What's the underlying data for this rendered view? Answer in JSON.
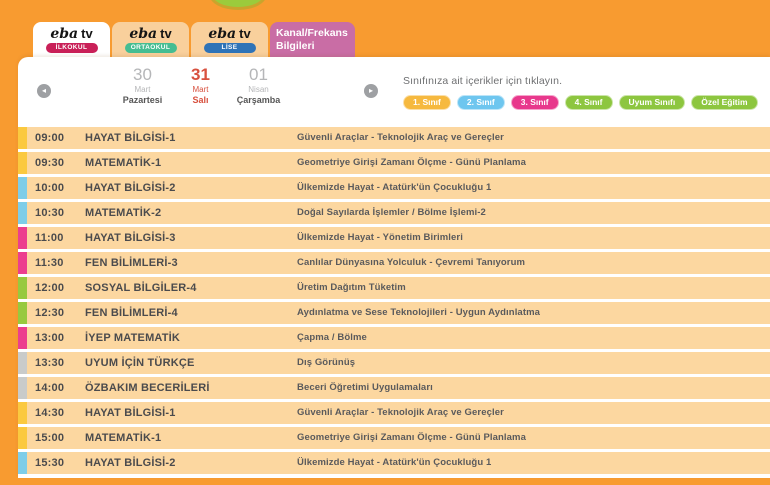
{
  "colors": {
    "page_bg": "#F89B30",
    "card_bg": "#FFFFFF",
    "row_bg": "#FCD7A0",
    "selected_date": "#D8513F"
  },
  "icons": {
    "prev_arrow": "◂",
    "next_arrow": "▸"
  },
  "tabs": [
    {
      "id": "ilkokul",
      "brand": "eba tv",
      "badge": "İLKOKUL",
      "badge_color": "#C92058",
      "active": true
    },
    {
      "id": "ortaokul",
      "brand": "eba tv",
      "badge": "ORTAOKUL",
      "badge_color": "#45BD92",
      "active": false
    },
    {
      "id": "lise",
      "brand": "eba tv",
      "badge": "LİSE",
      "badge_color": "#2F73B7",
      "active": false
    },
    {
      "id": "kanal-frekans",
      "label": "Kanal/Frekans Bilgileri",
      "color": "#C96DA5",
      "active": false
    }
  ],
  "date_nav": {
    "days": [
      {
        "day": "30",
        "month": "Mart",
        "weekday": "Pazartesi",
        "selected": false
      },
      {
        "day": "31",
        "month": "Mart",
        "weekday": "Salı",
        "selected": true
      },
      {
        "day": "01",
        "month": "Nisan",
        "weekday": "Çarşamba",
        "selected": false
      }
    ]
  },
  "filters": {
    "label": "Sınıfınıza ait içerikler için tıklayın.",
    "buttons": [
      {
        "label": "1. Sınıf",
        "color": "#F6B93F"
      },
      {
        "label": "2. Sınıf",
        "color": "#6EC6EF"
      },
      {
        "label": "3. Sınıf",
        "color": "#E8388C"
      },
      {
        "label": "4. Sınıf",
        "color": "#8DC63F"
      },
      {
        "label": "Uyum Sınıfı",
        "color": "#8DC63F"
      },
      {
        "label": "Özel Eğitim",
        "color": "#8DC63F"
      }
    ]
  },
  "schedule": {
    "rows": [
      {
        "time": "09:00",
        "lesson": "HAYAT BİLGİSİ-1",
        "topic": "Güvenli Araçlar - Teknolojik Araç ve Gereçler",
        "bar_color": "#FBC93F"
      },
      {
        "time": "09:30",
        "lesson": "MATEMATİK-1",
        "topic": "Geometriye Girişi Zamanı Ölçme - Günü Planlama",
        "bar_color": "#FBC93F"
      },
      {
        "time": "10:00",
        "lesson": "HAYAT BİLGİSİ-2",
        "topic": "Ülkemizde Hayat - Atatürk'ün Çocukluğu 1",
        "bar_color": "#7ECDE8"
      },
      {
        "time": "10:30",
        "lesson": "MATEMATİK-2",
        "topic": "Doğal Sayılarda İşlemler / Bölme İşlemi-2",
        "bar_color": "#7ECDE8"
      },
      {
        "time": "11:00",
        "lesson": "HAYAT BİLGİSİ-3",
        "topic": "Ülkemizde Hayat - Yönetim Birimleri",
        "bar_color": "#EC3E8E"
      },
      {
        "time": "11:30",
        "lesson": "FEN BİLİMLERİ-3",
        "topic": "Canlılar Dünyasına Yolculuk - Çevremi Tanıyorum",
        "bar_color": "#EC3E8E"
      },
      {
        "time": "12:00",
        "lesson": "SOSYAL BİLGİLER-4",
        "topic": "Üretim Dağıtım Tüketim",
        "bar_color": "#97C93E"
      },
      {
        "time": "12:30",
        "lesson": "FEN BİLİMLERİ-4",
        "topic": "Aydınlatma ve Sese Teknolojileri - Uygun Aydınlatma",
        "bar_color": "#97C93E"
      },
      {
        "time": "13:00",
        "lesson": "İYEP MATEMATİK",
        "topic": "Çapma / Bölme",
        "bar_color": "#EC3E8E"
      },
      {
        "time": "13:30",
        "lesson": "UYUM İÇİN TÜRKÇE",
        "topic": "Dış Görünüş",
        "bar_color": "#C9CBCA"
      },
      {
        "time": "14:00",
        "lesson": "ÖZBAKIM BECERİLERİ",
        "topic": "Beceri Öğretimi Uygulamaları",
        "bar_color": "#C9CBCA"
      },
      {
        "time": "14:30",
        "lesson": "HAYAT BİLGİSİ-1",
        "topic": "Güvenli Araçlar - Teknolojik Araç ve Gereçler",
        "bar_color": "#FBC93F"
      },
      {
        "time": "15:00",
        "lesson": "MATEMATİK-1",
        "topic": "Geometriye Girişi Zamanı Ölçme - Günü Planlama",
        "bar_color": "#FBC93F"
      },
      {
        "time": "15:30",
        "lesson": "HAYAT BİLGİSİ-2",
        "topic": "Ülkemizde Hayat - Atatürk'ün Çocukluğu 1",
        "bar_color": "#7ECDE8"
      }
    ]
  }
}
